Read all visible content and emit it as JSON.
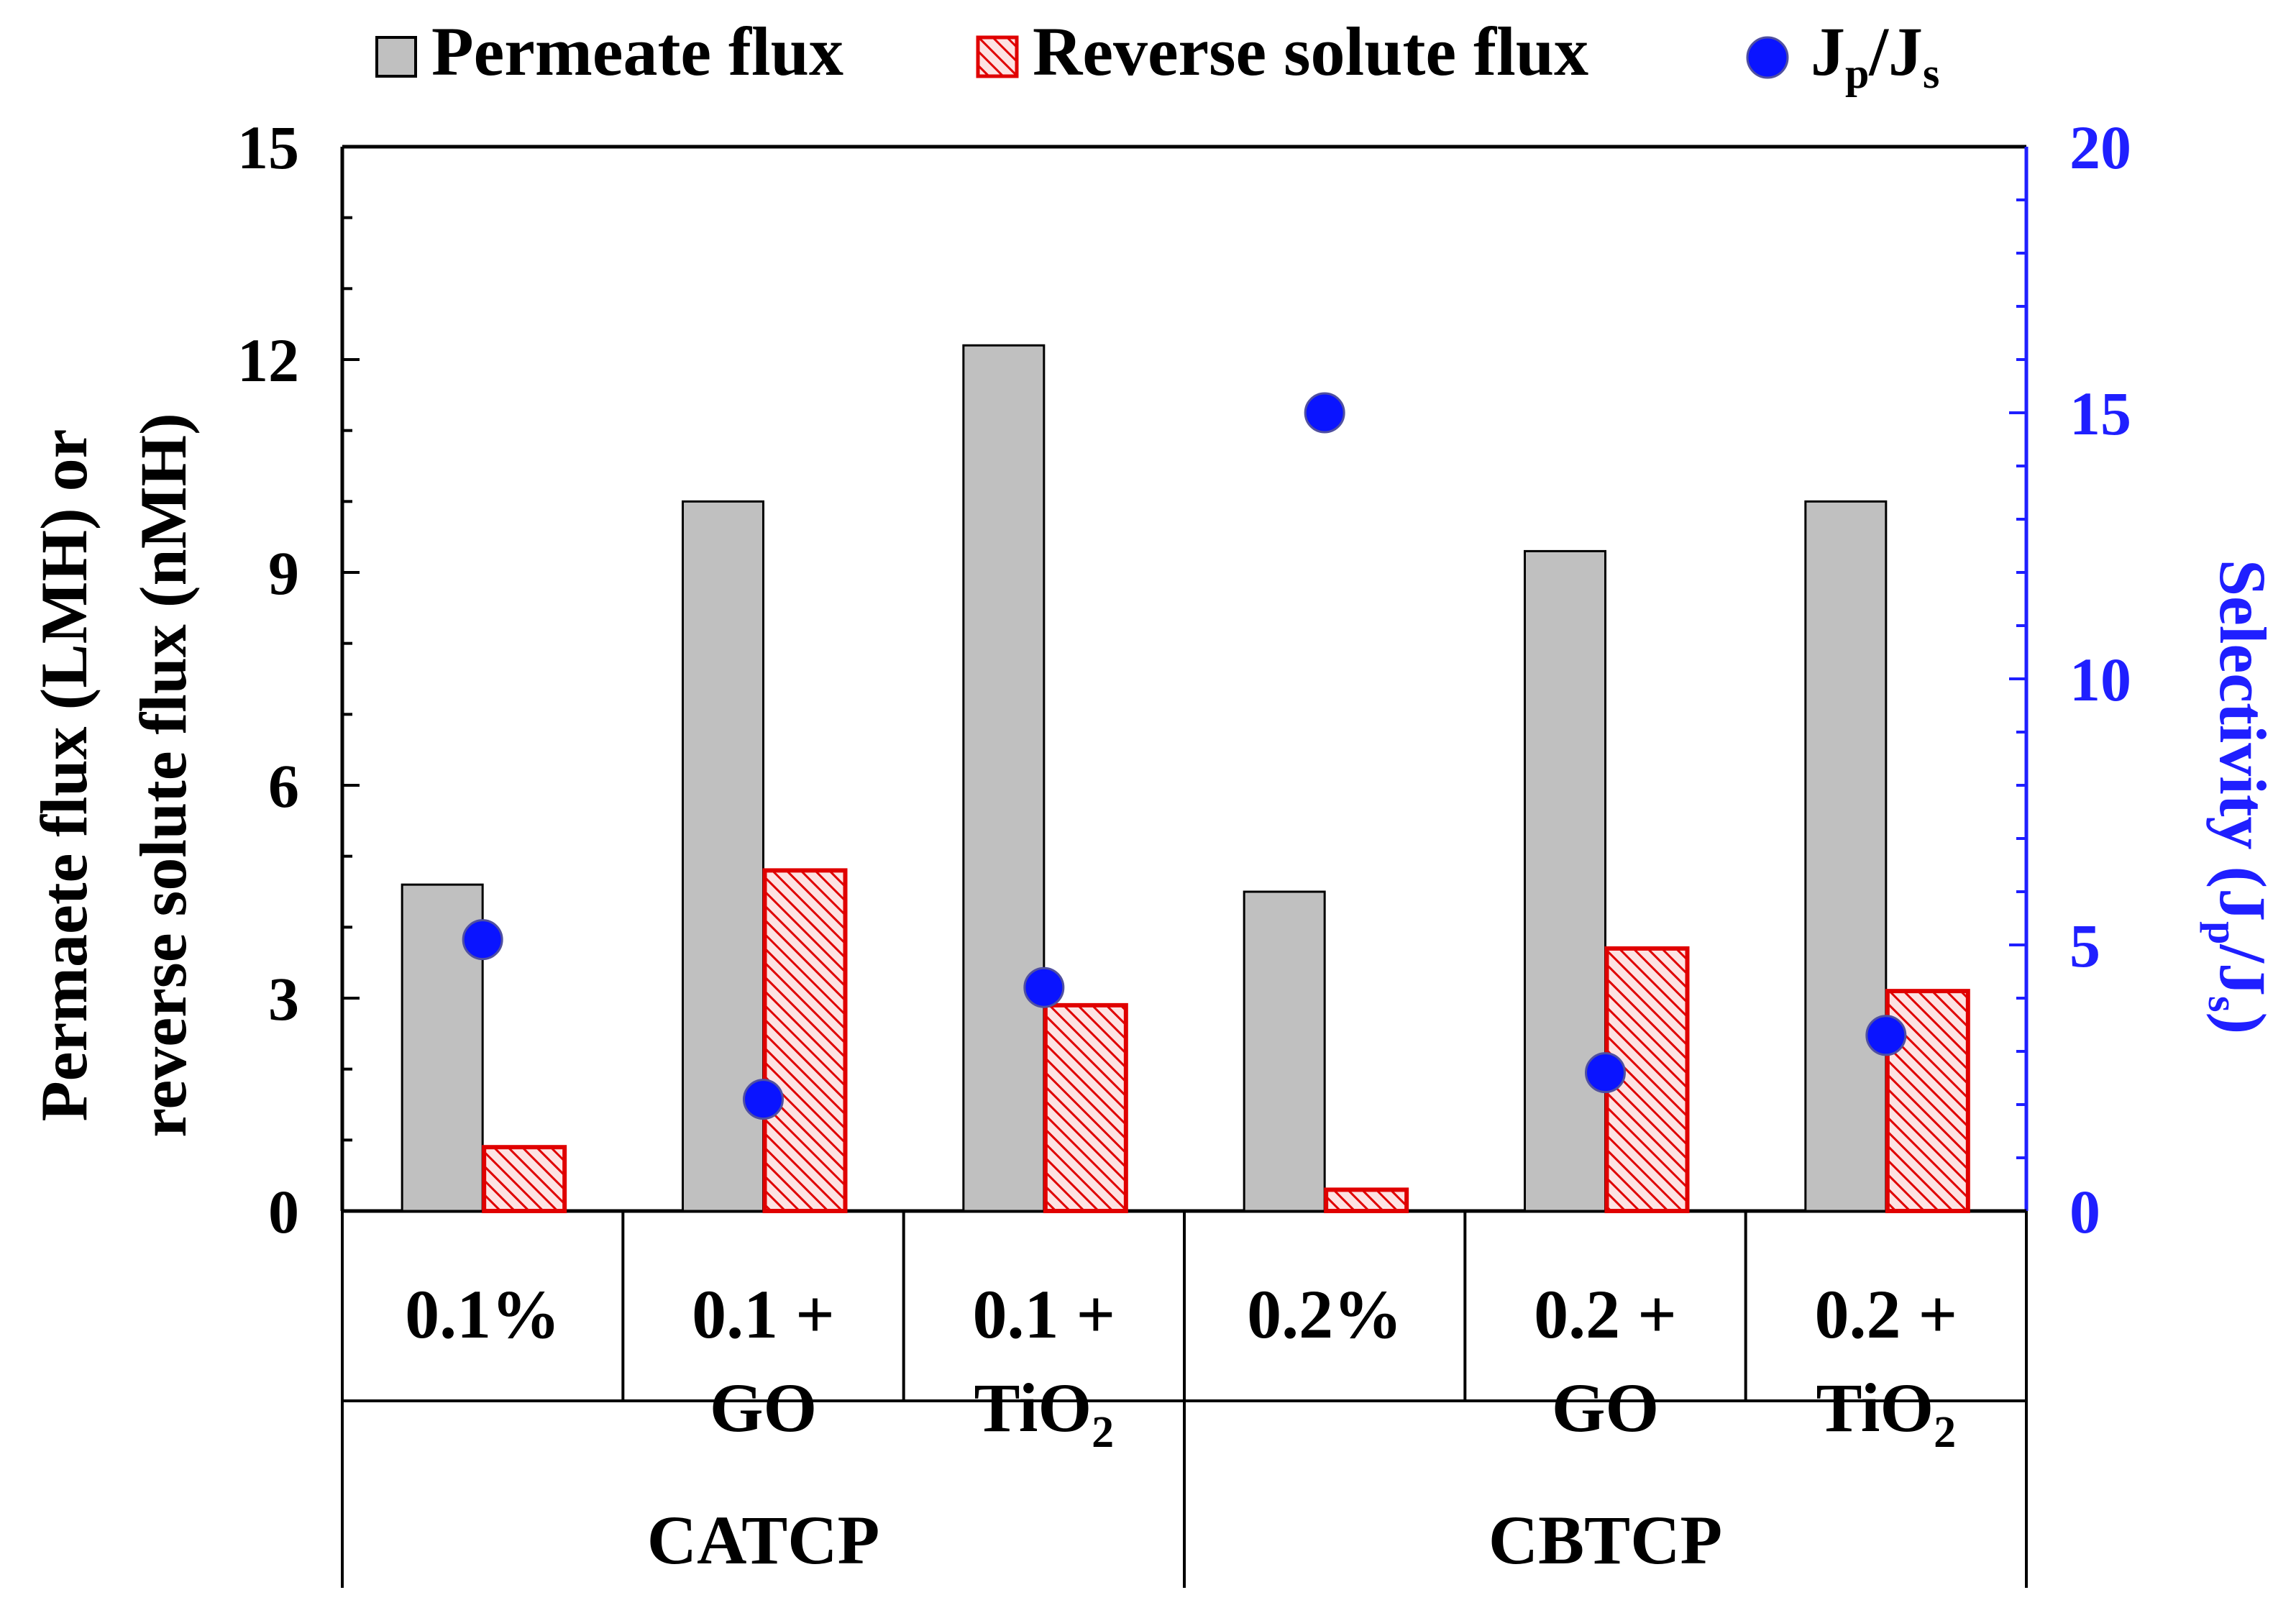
{
  "chart_data": {
    "type": "bar",
    "legend": {
      "placement": "top",
      "entries": [
        {
          "key": "permeate",
          "label": "Permeate flux",
          "marker": "gray-box"
        },
        {
          "key": "reverse",
          "label": "Reverse solute flux",
          "marker": "red-hatched-box"
        },
        {
          "key": "selectivity",
          "label_main": "J",
          "label_sub1": "p",
          "label_mid": "/J",
          "label_sub2": "s",
          "marker": "blue-dot"
        }
      ]
    },
    "y_left": {
      "label_line1": "Permaete flux (LMH) or",
      "label_line2": "reverse solute flux (nMH)",
      "ylim": [
        0,
        15
      ],
      "major_ticks": [
        0,
        3,
        6,
        9,
        12,
        15
      ],
      "minor_step": 1
    },
    "y_right": {
      "label_main": "Selectivity (J",
      "label_sub1": "p",
      "label_mid": "/J",
      "label_sub2": "s",
      "label_end": ")",
      "ylim": [
        0,
        20
      ],
      "major_ticks": [
        0,
        5,
        10,
        15,
        20
      ],
      "minor_step": 1
    },
    "categories": [
      {
        "line1": "0.1%",
        "line2": "",
        "line2_sub": ""
      },
      {
        "line1": "0.1 +",
        "line2": "GO",
        "line2_sub": ""
      },
      {
        "line1": "0.1 +",
        "line2": "TiO",
        "line2_sub": "2"
      },
      {
        "line1": "0.2%",
        "line2": "",
        "line2_sub": ""
      },
      {
        "line1": "0.2 +",
        "line2": "GO",
        "line2_sub": ""
      },
      {
        "line1": "0.2 +",
        "line2": "TiO",
        "line2_sub": "2"
      }
    ],
    "groups": [
      {
        "label": "CATCP",
        "span": [
          0,
          2
        ]
      },
      {
        "label": "CBTCP",
        "span": [
          3,
          5
        ]
      }
    ],
    "series": [
      {
        "name": "Permeate flux",
        "axis": "left",
        "values": [
          4.6,
          10.0,
          12.2,
          4.5,
          9.3,
          10.0
        ]
      },
      {
        "name": "Reverse solute flux",
        "axis": "left",
        "values": [
          0.9,
          4.8,
          2.9,
          0.3,
          3.7,
          3.1
        ]
      },
      {
        "name": "Jp/Js",
        "axis": "right",
        "values": [
          5.1,
          2.1,
          4.2,
          15.0,
          2.6,
          3.3
        ]
      }
    ],
    "colors": {
      "permeate_fill": "#c0c0c0",
      "reverse_stroke": "#e00000",
      "reverse_hatch_bg": "#fde3e3",
      "selectivity": "#0a14ff",
      "right_axis": "#1f1fff",
      "axis": "#000000"
    }
  }
}
